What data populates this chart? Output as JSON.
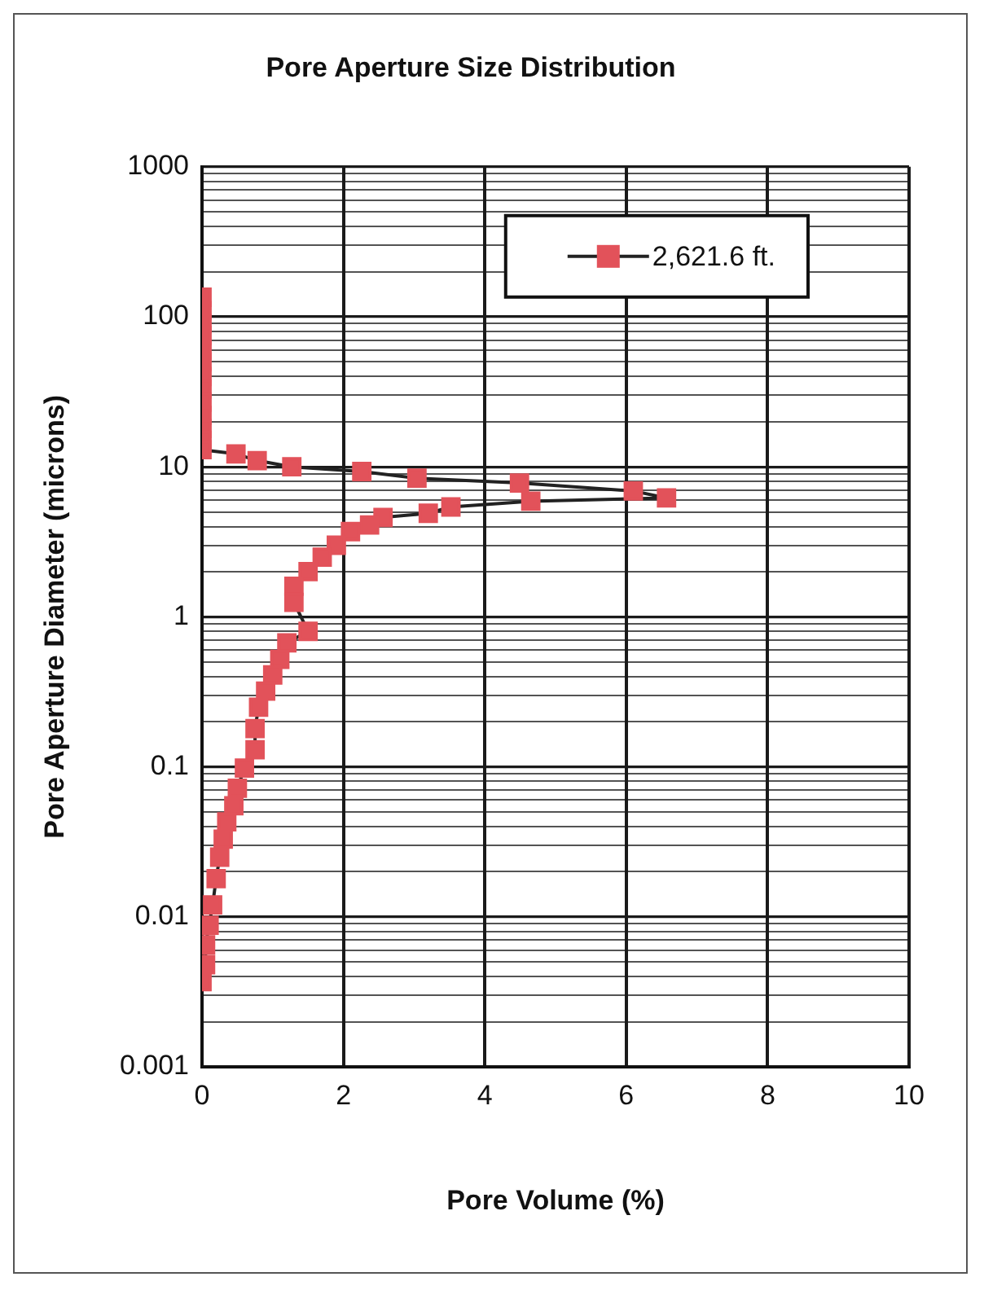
{
  "chart_data": {
    "type": "line",
    "title": "Pore Aperture Size Distribution",
    "xlabel": "Pore Volume (%)",
    "ylabel": "Pore Aperture Diameter (microns)",
    "xlim": [
      0,
      10
    ],
    "xticks": [
      0,
      2,
      4,
      6,
      8,
      10
    ],
    "ylim": [
      0.001,
      1000
    ],
    "log": "y",
    "yticks": [
      0.001,
      {
        "value": 0.002,
        "label": null
      },
      {
        "value": 0.003,
        "label": null
      },
      {
        "value": 0.004,
        "label": null
      },
      {
        "value": 0.005,
        "label": null
      },
      {
        "value": 0.006,
        "label": null
      },
      {
        "value": 0.007,
        "label": null
      },
      {
        "value": 0.008,
        "label": null
      },
      {
        "value": 0.009,
        "label": null
      },
      0.01,
      {
        "value": 0.02,
        "label": null
      },
      {
        "value": 0.03,
        "label": null
      },
      {
        "value": 0.04,
        "label": null
      },
      {
        "value": 0.05,
        "label": null
      },
      {
        "value": 0.06,
        "label": null
      },
      {
        "value": 0.07,
        "label": null
      },
      {
        "value": 0.08,
        "label": null
      },
      {
        "value": 0.09,
        "label": null
      },
      0.1,
      {
        "value": 0.2,
        "label": null
      },
      {
        "value": 0.3,
        "label": null
      },
      {
        "value": 0.4,
        "label": null
      },
      {
        "value": 0.5,
        "label": null
      },
      {
        "value": 0.6,
        "label": null
      },
      {
        "value": 0.7,
        "label": null
      },
      {
        "value": 0.8,
        "label": null
      },
      {
        "value": 0.9,
        "label": null
      },
      1,
      {
        "value": 2,
        "label": null
      },
      {
        "value": 3,
        "label": null
      },
      {
        "value": 4,
        "label": null
      },
      {
        "value": 5,
        "label": null
      },
      {
        "value": 6,
        "label": null
      },
      {
        "value": 7,
        "label": null
      },
      {
        "value": 8,
        "label": null
      },
      {
        "value": 9,
        "label": null
      },
      10,
      {
        "value": 20,
        "label": null
      },
      {
        "value": 30,
        "label": null
      },
      {
        "value": 40,
        "label": null
      },
      {
        "value": 50,
        "label": null
      },
      {
        "value": 60,
        "label": null
      },
      {
        "value": 70,
        "label": null
      },
      {
        "value": 80,
        "label": null
      },
      {
        "value": 90,
        "label": null
      },
      100,
      {
        "value": 200,
        "label": null
      },
      {
        "value": 300,
        "label": null
      },
      {
        "value": 400,
        "label": null
      },
      {
        "value": 500,
        "label": null
      },
      {
        "value": 600,
        "label": null
      },
      {
        "value": 700,
        "label": null
      },
      {
        "value": 800,
        "label": null
      },
      {
        "value": 900,
        "label": null
      },
      1000
    ],
    "grid": true,
    "legend": "top right",
    "marker": "square",
    "line_style": "solid",
    "series": [
      {
        "name": "2,621.6 ft.",
        "color": "#e2525a",
        "x": [
          0,
          0,
          0,
          0,
          0,
          0,
          0,
          0,
          0,
          0,
          0,
          0,
          0,
          0.48,
          0.78,
          1.27,
          2.26,
          3.04,
          4.49,
          6.1,
          6.57,
          4.65,
          3.52,
          3.2,
          2.56,
          2.37,
          2.1,
          1.9,
          1.7,
          1.5,
          1.3,
          1.3,
          1.5,
          1.2,
          1.1,
          1.0,
          0.9,
          0.8,
          0.75,
          0.75,
          0.6,
          0.5,
          0.45,
          0.35,
          0.3,
          0.25,
          0.2,
          0.15,
          0.1,
          0.05,
          0.05,
          0
        ],
        "values": [
          135,
          110,
          90,
          75,
          60,
          50,
          40,
          33,
          27,
          22,
          18,
          15,
          13,
          12.2,
          11,
          10,
          9.3,
          8.4,
          7.8,
          6.9,
          6.2,
          5.9,
          5.4,
          4.9,
          4.6,
          4.1,
          3.7,
          3.0,
          2.5,
          2.0,
          1.6,
          1.25,
          0.8,
          0.67,
          0.52,
          0.41,
          0.32,
          0.25,
          0.18,
          0.13,
          0.098,
          0.072,
          0.055,
          0.043,
          0.033,
          0.025,
          0.018,
          0.012,
          0.0088,
          0.0065,
          0.0048,
          0.0037
        ]
      }
    ]
  }
}
